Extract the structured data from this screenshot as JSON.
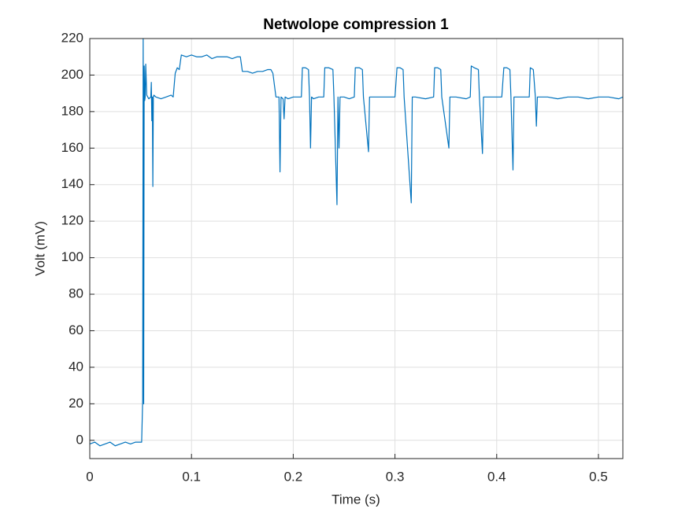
{
  "chart_data": {
    "type": "line",
    "title": "Netwolope compression 1",
    "x_label": "Time (s)",
    "y_label": "Volt (mV)",
    "x": [
      0,
      0.005,
      0.01,
      0.015,
      0.02,
      0.025,
      0.03,
      0.035,
      0.04,
      0.045,
      0.05,
      0.051,
      0.052,
      0.0525,
      0.053,
      0.0535,
      0.054,
      0.0545,
      0.055,
      0.056,
      0.058,
      0.06,
      0.0605,
      0.061,
      0.0615,
      0.062,
      0.0625,
      0.063,
      0.065,
      0.07,
      0.075,
      0.08,
      0.082,
      0.084,
      0.086,
      0.088,
      0.09,
      0.095,
      0.1,
      0.105,
      0.11,
      0.115,
      0.12,
      0.125,
      0.13,
      0.135,
      0.14,
      0.145,
      0.148,
      0.15,
      0.155,
      0.16,
      0.165,
      0.17,
      0.175,
      0.178,
      0.18,
      0.183,
      0.186,
      0.187,
      0.188,
      0.19,
      0.191,
      0.192,
      0.195,
      0.2,
      0.205,
      0.208,
      0.209,
      0.212,
      0.215,
      0.216,
      0.217,
      0.218,
      0.22,
      0.225,
      0.23,
      0.231,
      0.235,
      0.239,
      0.24,
      0.243,
      0.244,
      0.245,
      0.246,
      0.25,
      0.255,
      0.26,
      0.261,
      0.265,
      0.268,
      0.269,
      0.274,
      0.275,
      0.28,
      0.29,
      0.3,
      0.302,
      0.305,
      0.308,
      0.309,
      0.316,
      0.317,
      0.32,
      0.33,
      0.338,
      0.339,
      0.342,
      0.345,
      0.346,
      0.353,
      0.354,
      0.36,
      0.37,
      0.374,
      0.375,
      0.378,
      0.382,
      0.383,
      0.386,
      0.387,
      0.395,
      0.405,
      0.407,
      0.41,
      0.413,
      0.414,
      0.416,
      0.417,
      0.425,
      0.432,
      0.433,
      0.436,
      0.438,
      0.439,
      0.44,
      0.45,
      0.46,
      0.47,
      0.48,
      0.49,
      0.5,
      0.51,
      0.52,
      0.524
    ],
    "values": [
      -2,
      -1,
      -3,
      -2,
      -1,
      -3,
      -2,
      -1,
      -2,
      -1,
      -1,
      -1,
      22,
      220,
      20,
      205,
      186,
      188,
      206,
      189,
      187,
      188,
      196,
      175,
      188,
      139,
      188,
      189,
      188,
      187,
      188,
      189,
      188,
      201,
      204,
      203,
      211,
      210,
      211,
      210,
      210,
      211,
      209,
      210,
      210,
      210,
      209,
      210,
      210,
      202,
      202,
      201,
      202,
      202,
      203,
      203,
      201,
      188,
      188,
      147,
      188,
      187,
      176,
      188,
      187,
      188,
      188,
      188,
      204,
      204,
      203,
      188,
      160,
      188,
      187,
      188,
      188,
      204,
      204,
      203,
      188,
      129,
      188,
      160,
      188,
      188,
      187,
      188,
      204,
      204,
      203,
      188,
      158,
      188,
      188,
      188,
      188,
      204,
      204,
      203,
      188,
      130,
      188,
      188,
      187,
      188,
      204,
      204,
      203,
      188,
      160,
      188,
      188,
      187,
      188,
      205,
      204,
      203,
      188,
      157,
      188,
      188,
      188,
      204,
      204,
      203,
      188,
      148,
      188,
      188,
      188,
      204,
      203,
      188,
      172,
      188,
      188,
      187,
      188,
      188,
      187,
      188,
      188,
      187,
      188
    ],
    "color": "#0072bd",
    "xlim": [
      0,
      0.524
    ],
    "xticks": [
      0,
      0.1,
      0.2,
      0.3,
      0.4,
      0.5
    ],
    "ylim": [
      -10,
      220
    ],
    "yticks": [
      0,
      20,
      40,
      60,
      80,
      100,
      120,
      140,
      160,
      180,
      200,
      220
    ],
    "grid": true
  }
}
